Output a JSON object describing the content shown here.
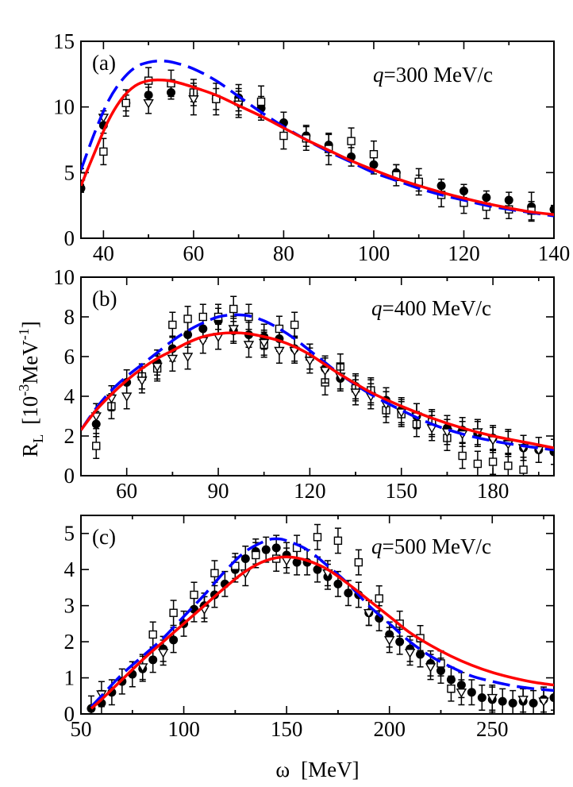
{
  "figure": {
    "y_axis_label_main": "R",
    "y_axis_label_sub": "L",
    "y_axis_unit_left": "[10",
    "y_axis_unit_exp1": "-3",
    "y_axis_unit_mid": "MeV",
    "y_axis_unit_exp2": "-1",
    "y_axis_unit_right": "]",
    "x_axis_label_symbol": "ω",
    "x_axis_label_unit": "[MeV]",
    "colors": {
      "solid_curve": "#ff0000",
      "dashed_curve": "#0000ff",
      "markers": "#000000"
    }
  },
  "chart_data": [
    {
      "type": "line",
      "panel": "(a)",
      "q_label_var": "q",
      "q_label_rest": "=300 MeV/c",
      "xlim": [
        35,
        140
      ],
      "ylim": [
        0,
        15
      ],
      "xticks": [
        40,
        60,
        80,
        100,
        120,
        140
      ],
      "xticklabels": [
        "40",
        "60",
        "80",
        "100",
        "120",
        "140"
      ],
      "yticks": [
        0,
        5,
        10,
        15
      ],
      "yticklabels": [
        "0",
        "5",
        "10",
        "15"
      ],
      "series": [
        {
          "name": "dashed",
          "style": "dashed",
          "color": "#0000ff",
          "x": [
            35,
            38,
            41,
            44,
            47,
            50,
            53,
            56,
            60,
            65,
            70,
            75,
            80,
            85,
            90,
            95,
            100,
            105,
            110,
            115,
            120,
            125,
            130,
            135,
            140
          ],
          "y": [
            5.2,
            8.0,
            10.4,
            12.0,
            13.0,
            13.4,
            13.5,
            13.35,
            12.9,
            12.0,
            10.8,
            9.6,
            8.5,
            7.5,
            6.6,
            5.8,
            5.0,
            4.4,
            3.8,
            3.3,
            2.9,
            2.5,
            2.2,
            1.95,
            1.7
          ]
        },
        {
          "name": "solid",
          "style": "solid",
          "color": "#ff0000",
          "x": [
            35,
            38,
            41,
            44,
            47,
            50,
            53,
            56,
            60,
            65,
            70,
            75,
            80,
            85,
            90,
            95,
            100,
            105,
            110,
            115,
            120,
            125,
            130,
            135,
            140
          ],
          "y": [
            4.0,
            6.5,
            8.9,
            10.6,
            11.6,
            12.0,
            12.05,
            11.9,
            11.5,
            10.9,
            10.1,
            9.3,
            8.4,
            7.5,
            6.7,
            5.9,
            5.2,
            4.55,
            4.0,
            3.5,
            3.05,
            2.65,
            2.3,
            2.0,
            1.8
          ]
        },
        {
          "name": "filled circles",
          "marker": "circle",
          "x": [
            35,
            40,
            45,
            50,
            55,
            60,
            65,
            70,
            75,
            80,
            85,
            90,
            95,
            100,
            105,
            110,
            115,
            120,
            125,
            130,
            135,
            140
          ],
          "y": [
            3.8,
            8.6,
            10.3,
            10.9,
            11.1,
            11.0,
            10.6,
            10.7,
            9.9,
            8.8,
            7.8,
            7.1,
            6.2,
            5.6,
            5.0,
            4.2,
            4.0,
            3.6,
            3.1,
            2.9,
            2.4,
            2.2
          ],
          "err": [
            0.3,
            0.6,
            0.6,
            0.6,
            0.5,
            0.6,
            0.8,
            1.0,
            0.9,
            0.8,
            0.8,
            0.8,
            0.7,
            0.7,
            0.6,
            0.6,
            0.5,
            0.5,
            0.5,
            0.6,
            1.1,
            0.3
          ]
        },
        {
          "name": "open squares",
          "marker": "square",
          "x": [
            35,
            40,
            45,
            50,
            55,
            60,
            65,
            70,
            75,
            80,
            85,
            90,
            95,
            100,
            105,
            110,
            115,
            120,
            125,
            130,
            135
          ],
          "y": [
            4.7,
            6.6,
            10.3,
            12.0,
            11.8,
            11.1,
            10.6,
            10.4,
            10.4,
            7.8,
            7.6,
            6.8,
            7.4,
            6.4,
            4.8,
            4.3,
            3.3,
            2.7,
            2.4,
            2.2,
            2.1
          ],
          "err": [
            0.6,
            1.0,
            1.0,
            1.0,
            1.0,
            1.0,
            1.2,
            1.0,
            1.2,
            1.0,
            0.9,
            1.2,
            1.0,
            1.0,
            0.8,
            1.0,
            0.9,
            0.8,
            0.9,
            0.7,
            0.7
          ]
        },
        {
          "name": "open triangles",
          "marker": "triangle",
          "x": [
            40,
            50,
            60,
            70
          ],
          "y": [
            9.2,
            10.3,
            10.6,
            10.2
          ],
          "err": [
            0.5,
            0.8,
            1.2,
            1.0
          ]
        }
      ]
    },
    {
      "type": "line",
      "panel": "(b)",
      "q_label_var": "q",
      "q_label_rest": "=400 MeV/c",
      "xlim": [
        45,
        200
      ],
      "ylim": [
        0,
        10
      ],
      "xticks": [
        60,
        90,
        120,
        150,
        180
      ],
      "xticklabels": [
        "60",
        "90",
        "120",
        "150",
        "180"
      ],
      "yticks": [
        0,
        2,
        4,
        6,
        8,
        10
      ],
      "yticklabels": [
        "0",
        "2",
        "4",
        "6",
        "8",
        "10"
      ],
      "series": [
        {
          "name": "dashed",
          "style": "dashed",
          "color": "#0000ff",
          "x": [
            45,
            50,
            55,
            60,
            65,
            70,
            75,
            80,
            85,
            90,
            95,
            100,
            105,
            110,
            115,
            120,
            125,
            130,
            140,
            150,
            160,
            170,
            180,
            190,
            200
          ],
          "y": [
            2.3,
            3.4,
            4.3,
            5.0,
            5.6,
            6.2,
            6.8,
            7.3,
            7.7,
            8.0,
            8.1,
            8.05,
            7.8,
            7.4,
            6.9,
            6.3,
            5.7,
            5.1,
            4.1,
            3.3,
            2.6,
            2.1,
            1.75,
            1.5,
            1.3
          ]
        },
        {
          "name": "solid",
          "style": "solid",
          "color": "#ff0000",
          "x": [
            45,
            50,
            55,
            60,
            65,
            70,
            75,
            80,
            85,
            90,
            95,
            100,
            105,
            110,
            115,
            120,
            125,
            130,
            140,
            150,
            160,
            170,
            180,
            190,
            200
          ],
          "y": [
            2.3,
            3.3,
            4.1,
            4.8,
            5.4,
            5.9,
            6.3,
            6.7,
            7.0,
            7.15,
            7.2,
            7.15,
            7.0,
            6.8,
            6.5,
            6.1,
            5.6,
            5.1,
            4.2,
            3.5,
            2.9,
            2.4,
            2.0,
            1.7,
            1.4
          ]
        },
        {
          "name": "filled circles",
          "marker": "circle",
          "x": [
            50,
            60,
            65,
            70,
            75,
            80,
            85,
            90,
            95,
            100,
            105,
            110,
            115,
            120,
            125,
            130,
            135,
            140,
            145,
            150,
            155,
            160,
            165,
            170,
            175,
            180,
            185,
            190,
            195,
            200
          ],
          "y": [
            2.6,
            4.7,
            5.0,
            5.7,
            6.4,
            7.1,
            7.4,
            7.8,
            7.3,
            7.1,
            7.0,
            6.9,
            6.4,
            6.0,
            5.4,
            4.9,
            4.5,
            4.2,
            3.8,
            3.3,
            3.0,
            2.6,
            2.4,
            2.3,
            2.1,
            1.9,
            1.7,
            1.4,
            1.3,
            1.2
          ]
        },
        {
          "name": "open squares",
          "marker": "square",
          "x": [
            50,
            55,
            65,
            70,
            75,
            80,
            85,
            90,
            95,
            100,
            105,
            110,
            115,
            120,
            125,
            130,
            135,
            140,
            145,
            150,
            155,
            160,
            165,
            170,
            175,
            180,
            185,
            190
          ],
          "y": [
            1.5,
            3.5,
            5.0,
            5.4,
            7.6,
            7.9,
            8.0,
            8.0,
            8.4,
            8.0,
            6.6,
            7.4,
            7.6,
            6.0,
            4.7,
            5.5,
            4.4,
            4.3,
            3.3,
            3.1,
            2.6,
            2.7,
            1.9,
            1.0,
            0.6,
            0.7,
            0.5,
            0.3
          ]
        },
        {
          "name": "open triangles",
          "marker": "triangle",
          "x": [
            50,
            55,
            60,
            65,
            70,
            75,
            80,
            85,
            90,
            95,
            100,
            105,
            110,
            115,
            120,
            125,
            130,
            135,
            140,
            145,
            150,
            155,
            160,
            165,
            170,
            175,
            180,
            185,
            190,
            195
          ],
          "y": [
            3.0,
            3.9,
            4.0,
            4.8,
            5.5,
            5.9,
            6.0,
            6.8,
            7.0,
            7.4,
            6.6,
            6.7,
            6.3,
            6.3,
            5.8,
            5.3,
            5.0,
            4.2,
            4.0,
            3.6,
            3.2,
            3.0,
            2.4,
            2.2,
            2.1,
            2.2,
            1.8,
            1.6,
            1.4,
            1.3
          ]
        }
      ]
    },
    {
      "type": "line",
      "panel": "(c)",
      "q_label_var": "q",
      "q_label_rest": "=500 MeV/c",
      "xlim": [
        50,
        280
      ],
      "ylim": [
        0,
        5.5
      ],
      "xticks": [
        50,
        100,
        150,
        200,
        250
      ],
      "xticklabels": [
        "50",
        "100",
        "150",
        "200",
        "250"
      ],
      "yticks": [
        0,
        1,
        2,
        3,
        4,
        5
      ],
      "yticklabels": [
        "0",
        "1",
        "2",
        "3",
        "4",
        "5"
      ],
      "series": [
        {
          "name": "dashed",
          "style": "dashed",
          "color": "#0000ff",
          "x": [
            55,
            60,
            70,
            80,
            90,
            100,
            110,
            120,
            130,
            140,
            145,
            150,
            160,
            170,
            180,
            190,
            200,
            210,
            220,
            230,
            240,
            250,
            260,
            270,
            280
          ],
          "y": [
            0.2,
            0.5,
            1.1,
            1.6,
            2.1,
            2.7,
            3.3,
            3.95,
            4.5,
            4.8,
            4.85,
            4.8,
            4.55,
            4.1,
            3.6,
            3.0,
            2.5,
            2.0,
            1.6,
            1.3,
            1.05,
            0.9,
            0.78,
            0.7,
            0.65
          ]
        },
        {
          "name": "solid",
          "style": "solid",
          "color": "#ff0000",
          "x": [
            55,
            60,
            70,
            80,
            90,
            100,
            110,
            120,
            130,
            140,
            150,
            160,
            170,
            180,
            190,
            200,
            210,
            220,
            230,
            240,
            250,
            260,
            270,
            280
          ],
          "y": [
            0.15,
            0.4,
            0.95,
            1.5,
            2.0,
            2.5,
            3.0,
            3.5,
            3.95,
            4.25,
            4.35,
            4.25,
            4.0,
            3.6,
            3.15,
            2.7,
            2.25,
            1.9,
            1.6,
            1.35,
            1.15,
            1.0,
            0.88,
            0.8
          ]
        },
        {
          "name": "filled circles",
          "marker": "circle",
          "x": [
            55,
            60,
            65,
            70,
            75,
            80,
            85,
            90,
            95,
            100,
            105,
            110,
            115,
            120,
            125,
            130,
            135,
            140,
            145,
            150,
            155,
            160,
            165,
            170,
            175,
            180,
            185,
            190,
            195,
            200,
            205,
            210,
            215,
            220,
            225,
            230,
            235,
            240,
            245,
            250,
            255,
            260,
            265,
            270,
            275,
            280
          ],
          "y": [
            0.15,
            0.3,
            0.6,
            0.9,
            1.1,
            1.25,
            1.5,
            1.8,
            2.05,
            2.5,
            2.9,
            3.0,
            3.3,
            3.6,
            4.0,
            4.3,
            4.5,
            4.55,
            4.6,
            4.4,
            4.2,
            4.2,
            4.0,
            3.8,
            3.6,
            3.35,
            3.3,
            2.8,
            2.65,
            2.2,
            2.0,
            1.8,
            1.65,
            1.4,
            1.2,
            0.95,
            0.8,
            0.6,
            0.45,
            0.4,
            0.35,
            0.3,
            0.35,
            0.3,
            0.4,
            0.45
          ]
        },
        {
          "name": "open squares",
          "marker": "square",
          "x": [
            85,
            95,
            105,
            115,
            125,
            135,
            145,
            155,
            165,
            175,
            185,
            195,
            205,
            215,
            225,
            230
          ],
          "y": [
            2.2,
            2.8,
            3.3,
            3.9,
            4.1,
            4.4,
            4.3,
            4.6,
            4.9,
            4.8,
            4.2,
            3.2,
            2.5,
            2.1,
            1.4,
            0.7
          ]
        },
        {
          "name": "open triangles",
          "marker": "triangle",
          "x": [
            60,
            80,
            90,
            110,
            130,
            150,
            170,
            190,
            200,
            210,
            220,
            235,
            250,
            265,
            275
          ],
          "y": [
            0.55,
            1.3,
            1.7,
            2.9,
            3.9,
            4.25,
            3.9,
            2.8,
            2.05,
            1.7,
            1.3,
            0.6,
            0.45,
            0.4,
            0.35
          ]
        }
      ]
    }
  ]
}
